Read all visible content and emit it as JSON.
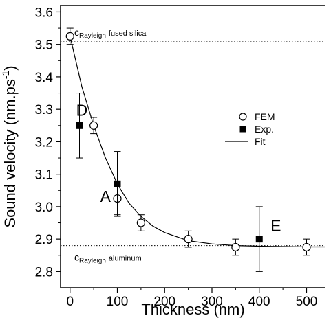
{
  "chart_data": {
    "type": "scatter",
    "title": "",
    "xlabel": "Thickness (nm)",
    "ylabel_main": "Sound velocity (nm.ps",
    "ylabel_exp": "-1",
    "ylabel_end": ")",
    "xlim": [
      -20,
      540
    ],
    "ylim": [
      2.75,
      3.62
    ],
    "x_ticks": [
      0,
      100,
      200,
      300,
      400,
      500
    ],
    "x_tick_labels": [
      "0",
      "100",
      "200",
      "300",
      "400",
      "500"
    ],
    "y_ticks": [
      2.8,
      2.9,
      3.0,
      3.1,
      3.2,
      3.3,
      3.4,
      3.5,
      3.6
    ],
    "y_tick_labels": [
      "2.8",
      "2.9",
      "3.0",
      "3.1",
      "3.2",
      "3.3",
      "3.4",
      "3.5",
      "3.6"
    ],
    "grid": false,
    "legend_position": "right-center",
    "series": [
      {
        "name": "FEM",
        "marker": "open-circle",
        "points": [
          {
            "x": 0,
            "y": 3.525,
            "err": 0.025
          },
          {
            "x": 50,
            "y": 3.25,
            "err": 0.025
          },
          {
            "x": 100,
            "y": 3.025,
            "err": 0.05
          },
          {
            "x": 150,
            "y": 2.95,
            "err": 0.025
          },
          {
            "x": 250,
            "y": 2.9,
            "err": 0.025
          },
          {
            "x": 350,
            "y": 2.875,
            "err": 0.025
          },
          {
            "x": 500,
            "y": 2.875,
            "err": 0.025
          }
        ]
      },
      {
        "name": "Exp.",
        "marker": "filled-square",
        "points": [
          {
            "x": 20,
            "y": 3.25,
            "err": 0.1
          },
          {
            "x": 100,
            "y": 3.07,
            "err": 0.1
          },
          {
            "x": 400,
            "y": 2.9,
            "err": 0.1
          }
        ]
      },
      {
        "name": "Fit",
        "marker": "line",
        "curve_points": [
          {
            "x": 0,
            "y": 3.525
          },
          {
            "x": 25,
            "y": 3.37
          },
          {
            "x": 50,
            "y": 3.25
          },
          {
            "x": 75,
            "y": 3.15
          },
          {
            "x": 100,
            "y": 3.07
          },
          {
            "x": 125,
            "y": 3.01
          },
          {
            "x": 150,
            "y": 2.97
          },
          {
            "x": 175,
            "y": 2.94
          },
          {
            "x": 200,
            "y": 2.92
          },
          {
            "x": 250,
            "y": 2.895
          },
          {
            "x": 300,
            "y": 2.885
          },
          {
            "x": 350,
            "y": 2.88
          },
          {
            "x": 400,
            "y": 2.878
          },
          {
            "x": 450,
            "y": 2.877
          },
          {
            "x": 500,
            "y": 2.876
          },
          {
            "x": 540,
            "y": 2.876
          }
        ]
      }
    ],
    "reference_lines": [
      {
        "y": 3.51,
        "style": "dotted",
        "label_main": "c",
        "label_sub": "Rayleigh",
        "label_tail": "fused silica"
      },
      {
        "y": 2.88,
        "style": "dotted",
        "label_main": "c",
        "label_sub": "Rayleigh",
        "label_tail": "aluminum"
      }
    ],
    "annotations": [
      {
        "text": "D",
        "x": 25,
        "y": 3.28
      },
      {
        "text": "A",
        "x": 75,
        "y": 3.015
      },
      {
        "text": "E",
        "x": 435,
        "y": 2.925
      }
    ]
  }
}
